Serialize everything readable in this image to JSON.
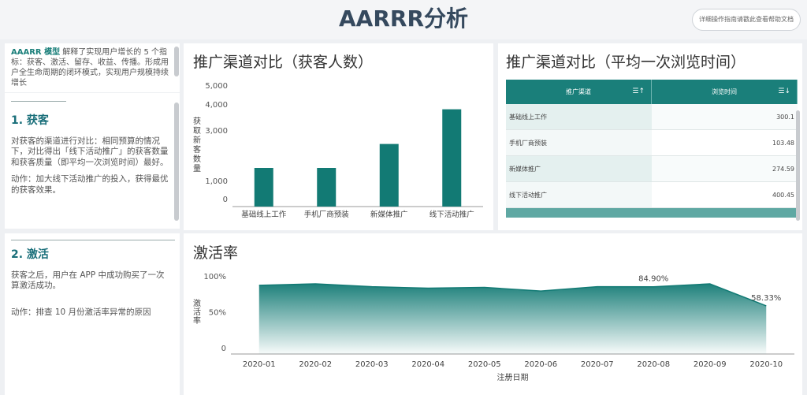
{
  "header": {
    "title": "AARRR分析",
    "help_label": "详细操作指南请戳此查看帮助文档"
  },
  "intro": {
    "bold": "AAARR 模型",
    "text": " 解释了实现用户增长的 5 个指标：获客、激活、留存、收益、传播。形成用户全生命周期的闭环模式，实现用户规模持续增长"
  },
  "section1": {
    "title": "1. 获客",
    "text": "对获客的渠道进行对比：相同预算的情况下，对比得出「线下活动推广」的获客数量和获客质量（即平均一次浏览时间）最好。",
    "action": "动作：加大线下活动推广的投入，获得最优的获客效果。"
  },
  "section2": {
    "title": "2. 激活",
    "text": "获客之后，用户在 APP 中成功购买了一次算激活成功。",
    "action": "动作：排查 10 月份激活率异常的原因"
  },
  "bar_panel": {
    "title": "推广渠道对比（获客人数）"
  },
  "table_panel": {
    "title": "推广渠道对比（平均一次浏览时间）",
    "columns": [
      "推广渠道",
      "浏览时间"
    ],
    "rows": [
      [
        "基础线上工作",
        "300.1"
      ],
      [
        "手机厂商预装",
        "103.48"
      ],
      [
        "新媒体推广",
        "274.59"
      ],
      [
        "线下活动推广",
        "400.45"
      ]
    ]
  },
  "line_panel": {
    "title": "激活率"
  },
  "colors": {
    "accent": "#1a7f7a",
    "title": "#35495e"
  },
  "chart_data": [
    {
      "type": "bar",
      "categories": [
        "基础线上工作",
        "手机厂商预装",
        "新媒体推广",
        "线下活动推广"
      ],
      "values": [
        1500,
        1500,
        2450,
        3800
      ],
      "ylabel": "获取新客数量",
      "yticks": [
        "0",
        "1,000",
        "3,000",
        "4,000",
        "5,000"
      ],
      "ylim": [
        0,
        5000
      ]
    },
    {
      "type": "area",
      "categories": [
        "2020-01",
        "2020-02",
        "2020-03",
        "2020-04",
        "2020-05",
        "2020-06",
        "2020-07",
        "2020-08",
        "2020-09",
        "2020-10"
      ],
      "values": [
        87,
        89,
        85,
        83,
        84,
        79,
        85,
        84.9,
        89,
        58.33
      ],
      "labels": {
        "7": "84.90%",
        "9": "58.33%"
      },
      "xlabel": "注册日期",
      "ylabel": "激活率",
      "yticks": [
        "0",
        "50%",
        "100%"
      ],
      "ylim": [
        0,
        100
      ]
    }
  ]
}
